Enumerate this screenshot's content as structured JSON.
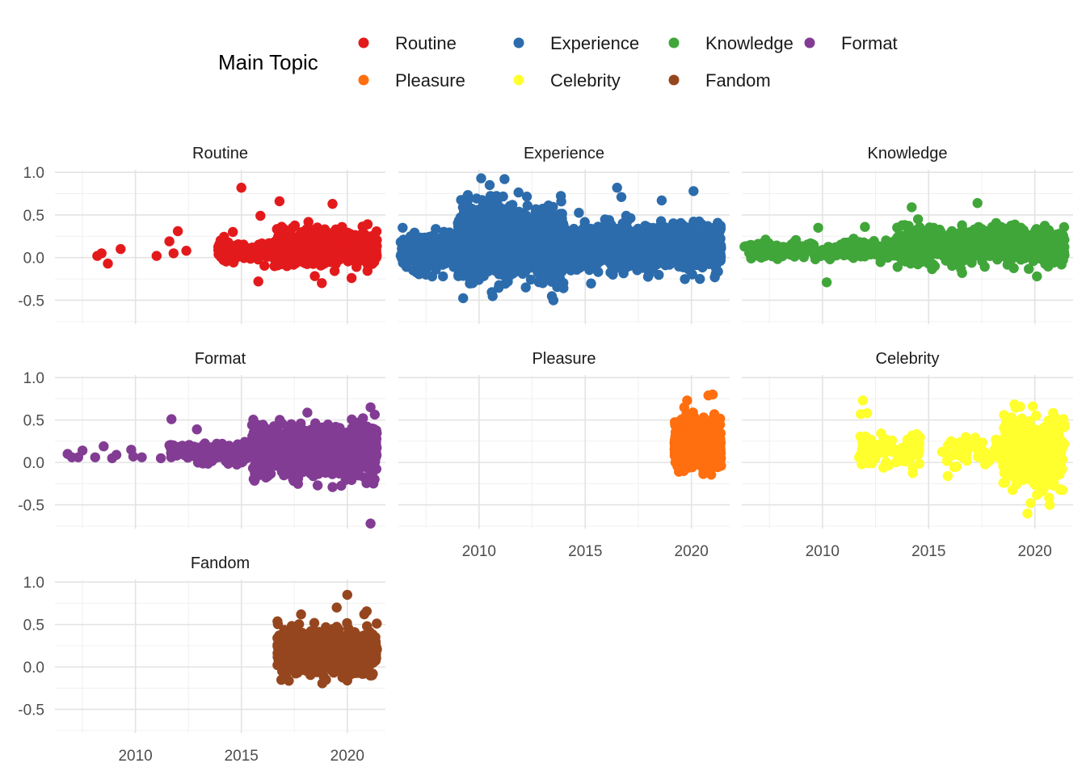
{
  "legend": {
    "title": "Main Topic",
    "items": [
      {
        "label": "Routine",
        "color": "#E31A1C"
      },
      {
        "label": "Experience",
        "color": "#2C6CAC"
      },
      {
        "label": "Knowledge",
        "color": "#41A63A"
      },
      {
        "label": "Format",
        "color": "#833C94"
      },
      {
        "label": "Pleasure",
        "color": "#FF6F0F"
      },
      {
        "label": "Celebrity",
        "color": "#FFFF2E"
      },
      {
        "label": "Fandom",
        "color": "#96461E"
      }
    ]
  },
  "chart_data": {
    "type": "scatter",
    "facet": true,
    "grid": true,
    "xlim": [
      2006.2,
      2021.8
    ],
    "ylim": [
      -0.78,
      1.03
    ],
    "x_ticks": [
      2010,
      2015,
      2020
    ],
    "x_tick_labels": [
      "2010",
      "2015",
      "2020"
    ],
    "y_ticks": [
      -0.5,
      0.0,
      0.5,
      1.0
    ],
    "y_tick_labels": [
      "-0.5",
      "0.0",
      "0.5",
      "1.0"
    ],
    "legend_position": "top",
    "panels": [
      {
        "title": "Routine",
        "color": "#E31A1C",
        "extremes": [
          [
            2008.2,
            0.02
          ],
          [
            2008.4,
            0.05
          ],
          [
            2008.7,
            -0.07
          ],
          [
            2009.3,
            0.1
          ],
          [
            2011.0,
            0.02
          ],
          [
            2011.6,
            0.19
          ],
          [
            2011.8,
            0.05
          ],
          [
            2012.0,
            0.31
          ],
          [
            2012.4,
            0.08
          ],
          [
            2014.6,
            0.3
          ],
          [
            2015.0,
            0.82
          ],
          [
            2015.8,
            -0.28
          ],
          [
            2015.9,
            0.49
          ],
          [
            2016.8,
            0.66
          ],
          [
            2019.3,
            0.63
          ],
          [
            2018.8,
            -0.3
          ],
          [
            2020.2,
            -0.24
          ]
        ],
        "cloud": [
          {
            "from": 2013.9,
            "to": 2016.5,
            "n": 120,
            "mean": 0.08,
            "sd": 0.05
          },
          {
            "from": 2016.5,
            "to": 2021.4,
            "n": 550,
            "mean": 0.12,
            "sd": 0.1
          }
        ]
      },
      {
        "title": "Experience",
        "color": "#2C6CAC",
        "extremes": [
          [
            2006.4,
            0.35
          ],
          [
            2006.9,
            -0.15
          ],
          [
            2007.5,
            -0.2
          ],
          [
            2008.3,
            -0.22
          ],
          [
            2009.7,
            -0.3
          ],
          [
            2010.1,
            0.93
          ],
          [
            2010.5,
            0.85
          ],
          [
            2011.2,
            0.92
          ],
          [
            2012.2,
            -0.35
          ],
          [
            2013.0,
            -0.3
          ],
          [
            2013.5,
            -0.5
          ],
          [
            2016.5,
            0.82
          ],
          [
            2016.7,
            0.71
          ],
          [
            2018.6,
            0.67
          ],
          [
            2020.1,
            0.78
          ],
          [
            2020.4,
            -0.25
          ],
          [
            2021.1,
            -0.23
          ],
          [
            2018.0,
            -0.2
          ],
          [
            2016.3,
            -0.2
          ]
        ],
        "cloud": [
          {
            "from": 2006.3,
            "to": 2009.0,
            "n": 320,
            "mean": 0.08,
            "sd": 0.1
          },
          {
            "from": 2009.0,
            "to": 2014.0,
            "n": 1300,
            "mean": 0.18,
            "sd": 0.2
          },
          {
            "from": 2014.0,
            "to": 2021.4,
            "n": 1300,
            "mean": 0.12,
            "sd": 0.12
          }
        ]
      },
      {
        "title": "Knowledge",
        "color": "#41A63A",
        "extremes": [
          [
            2009.8,
            0.35
          ],
          [
            2010.2,
            -0.29
          ],
          [
            2014.2,
            0.59
          ],
          [
            2017.3,
            0.64
          ],
          [
            2020.1,
            -0.22
          ],
          [
            2012.0,
            0.36
          ]
        ],
        "cloud": [
          {
            "from": 2006.3,
            "to": 2013.5,
            "n": 260,
            "mean": 0.09,
            "sd": 0.05
          },
          {
            "from": 2013.5,
            "to": 2021.4,
            "n": 900,
            "mean": 0.15,
            "sd": 0.1
          }
        ]
      },
      {
        "title": "Format",
        "color": "#833C94",
        "extremes": [
          [
            2006.8,
            0.1
          ],
          [
            2007.0,
            0.06
          ],
          [
            2007.3,
            0.06
          ],
          [
            2007.5,
            0.14
          ],
          [
            2008.1,
            0.06
          ],
          [
            2008.5,
            0.19
          ],
          [
            2008.9,
            0.05
          ],
          [
            2009.1,
            0.09
          ],
          [
            2009.8,
            0.15
          ],
          [
            2009.9,
            0.07
          ],
          [
            2010.3,
            0.06
          ],
          [
            2011.2,
            0.05
          ],
          [
            2011.7,
            0.51
          ],
          [
            2012.9,
            0.39
          ],
          [
            2021.1,
            -0.72
          ],
          [
            2021.1,
            0.65
          ],
          [
            2018.6,
            -0.27
          ]
        ],
        "cloud": [
          {
            "from": 2011.6,
            "to": 2015.5,
            "n": 150,
            "mean": 0.1,
            "sd": 0.06
          },
          {
            "from": 2015.5,
            "to": 2021.4,
            "n": 900,
            "mean": 0.13,
            "sd": 0.14
          }
        ]
      },
      {
        "title": "Pleasure",
        "color": "#FF6F0F",
        "extremes": [
          [
            2019.8,
            0.73
          ],
          [
            2020.8,
            0.79
          ],
          [
            2021.0,
            0.8
          ]
        ],
        "cloud": [
          {
            "from": 2019.2,
            "to": 2021.4,
            "n": 650,
            "mean": 0.2,
            "sd": 0.14
          }
        ]
      },
      {
        "title": "Celebrity",
        "color": "#FFFF2E",
        "extremes": [
          [
            2011.9,
            0.73
          ],
          [
            2011.8,
            0.57
          ],
          [
            2012.1,
            0.58
          ],
          [
            2014.0,
            0.27
          ],
          [
            2015.9,
            -0.16
          ],
          [
            2019.8,
            -0.48
          ],
          [
            2020.7,
            -0.5
          ],
          [
            2019.9,
            0.66
          ],
          [
            2018.9,
            0.53
          ]
        ],
        "cloud": [
          {
            "from": 2011.7,
            "to": 2014.6,
            "n": 90,
            "mean": 0.15,
            "sd": 0.1
          },
          {
            "from": 2015.6,
            "to": 2018.5,
            "n": 60,
            "mean": 0.12,
            "sd": 0.09
          },
          {
            "from": 2018.5,
            "to": 2021.4,
            "n": 450,
            "mean": 0.12,
            "sd": 0.2
          }
        ]
      },
      {
        "title": "Fandom",
        "color": "#96461E",
        "extremes": [
          [
            2016.7,
            0.34
          ],
          [
            2019.5,
            0.7
          ],
          [
            2020.0,
            0.85
          ],
          [
            2020.8,
            0.62
          ],
          [
            2020.0,
            -0.16
          ]
        ],
        "cloud": [
          {
            "from": 2016.7,
            "to": 2021.4,
            "n": 750,
            "mean": 0.18,
            "sd": 0.12
          }
        ]
      }
    ]
  }
}
